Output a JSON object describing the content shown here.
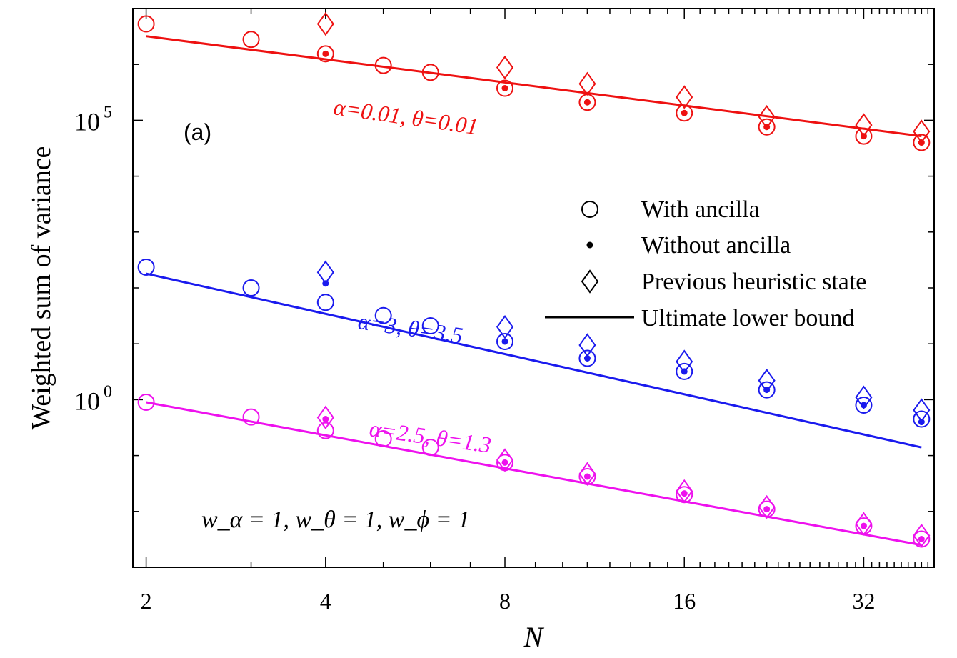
{
  "chart_data": {
    "type": "scatter",
    "panel_label": "(a)",
    "xlabel": "N",
    "ylabel": "Weighted sum of variance",
    "xscale": "log2",
    "yscale": "log10",
    "xlim": [
      1.9,
      42
    ],
    "ylim": [
      0.001,
      10000000.0
    ],
    "x_ticks": [
      2,
      4,
      8,
      16,
      32
    ],
    "y_ticks": [
      {
        "value": 1,
        "base": "10",
        "exp": "0"
      },
      {
        "value": 100000,
        "base": "10",
        "exp": "5"
      }
    ],
    "weights_text": "w_α = 1, w_θ = 1, w_ϕ = 1",
    "legend": {
      "position": "right",
      "entries": [
        {
          "marker": "circle",
          "label": "With ancilla"
        },
        {
          "marker": "dot",
          "label": "Without ancilla"
        },
        {
          "marker": "diamond",
          "label": "Previous heuristic state"
        },
        {
          "marker": "line",
          "label": "Ultimate lower bound"
        }
      ]
    },
    "series": [
      {
        "name": "α=0.01, θ=0.01",
        "color": "#ee1111",
        "bound": {
          "x": [
            2,
            40
          ],
          "y": [
            3200000.0,
            52000.0
          ]
        },
        "with_ancilla": {
          "x": [
            2,
            3,
            4,
            5,
            6,
            8,
            11,
            16,
            22,
            32,
            40
          ],
          "y": [
            5300000.0,
            2800000.0,
            1550000.0,
            960000.0,
            720000.0,
            375000.0,
            210000.0,
            135000.0,
            76000.0,
            52000.0,
            40000.0
          ]
        },
        "without_ancilla": {
          "x": [
            4,
            8,
            11,
            16,
            22,
            32,
            40
          ],
          "y": [
            1550000.0,
            375000.0,
            210000.0,
            135000.0,
            76000.0,
            52000.0,
            40000.0
          ]
        },
        "heuristic": {
          "x": [
            4,
            8,
            11,
            16,
            22,
            32,
            40
          ],
          "y": [
            5300000.0,
            880000.0,
            450000.0,
            260000.0,
            115000.0,
            82000.0,
            63000.0
          ]
        }
      },
      {
        "name": "α=3, θ=3.5",
        "color": "#1a1aee",
        "bound": {
          "x": [
            2,
            40
          ],
          "y": [
            180,
            0.14
          ]
        },
        "with_ancilla": {
          "x": [
            2,
            3,
            4,
            5,
            6,
            8,
            11,
            16,
            22,
            32,
            40
          ],
          "y": [
            235,
            100,
            55,
            32,
            21,
            11,
            5.5,
            3.2,
            1.5,
            0.8,
            0.45
          ]
        },
        "without_ancilla": {
          "x": [
            4,
            8,
            11,
            16,
            22,
            32,
            40
          ],
          "y": [
            120,
            11,
            5.5,
            3.2,
            1.5,
            0.8,
            0.4
          ]
        },
        "heuristic": {
          "x": [
            4,
            8,
            11,
            16,
            22,
            32,
            40
          ],
          "y": [
            190,
            20,
            9.5,
            4.8,
            2.2,
            1.1,
            0.65
          ]
        }
      },
      {
        "name": "α=2.5, θ=1.3",
        "color": "#ee11ee",
        "bound": {
          "x": [
            2,
            40
          ],
          "y": [
            0.9,
            0.0025
          ]
        },
        "with_ancilla": {
          "x": [
            2,
            3,
            4,
            5,
            6,
            8,
            11,
            16,
            22,
            32,
            40
          ],
          "y": [
            0.9,
            0.49,
            0.28,
            0.2,
            0.14,
            0.075,
            0.042,
            0.02,
            0.011,
            0.0055,
            0.0032
          ]
        },
        "without_ancilla": {
          "x": [
            4,
            8,
            11,
            16,
            22,
            32,
            40
          ],
          "y": [
            0.45,
            0.075,
            0.042,
            0.021,
            0.011,
            0.0055,
            0.0032
          ]
        },
        "heuristic": {
          "x": [
            4,
            8,
            11,
            16,
            22,
            32,
            40
          ],
          "y": [
            0.48,
            0.083,
            0.047,
            0.023,
            0.012,
            0.006,
            0.0037
          ]
        }
      }
    ]
  }
}
